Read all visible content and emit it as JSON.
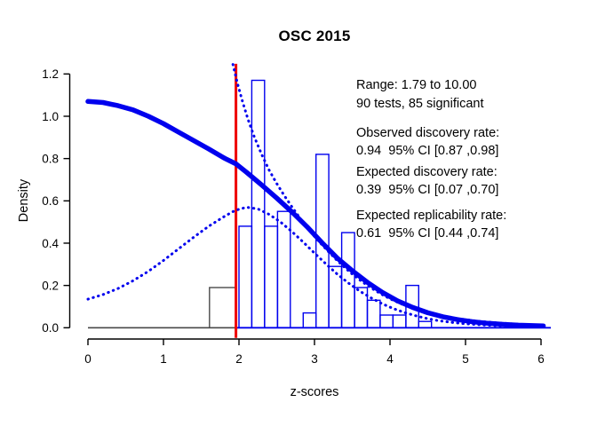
{
  "annotations": {
    "range_line": "Range: 1.79 to 10.00",
    "tests_line": "90 tests, 85 significant",
    "odr_label": "Observed discovery rate:",
    "odr_value": "0.94  95% CI [0.87 ,0.98]",
    "edr_label": "Expected discovery rate:",
    "edr_value": "0.39  95% CI [0.07 ,0.70]",
    "err_label": "Expected replicability rate:",
    "err_value": "0.61  95% CI [0.44 ,0.74]"
  },
  "stats": {
    "range": "1.79 to 10.00",
    "n_tests": 90,
    "n_significant": 85,
    "observed_discovery_rate": 0.94,
    "observed_discovery_rate_ci": [
      0.87,
      0.98
    ],
    "expected_discovery_rate": 0.39,
    "expected_discovery_rate_ci": [
      0.07,
      0.7
    ],
    "expected_replicability_rate": 0.61,
    "expected_replicability_rate_ci": [
      0.44,
      0.74
    ]
  },
  "chart_data": {
    "type": "bar",
    "subtype": "z-curve histogram with fitted density curves",
    "title": "OSC 2015",
    "xlabel": "z-scores",
    "ylabel": "Density",
    "xlim": [
      0,
      6
    ],
    "ylim": [
      0,
      1.2
    ],
    "grid": false,
    "legend": "none",
    "x_tick_values": [
      0,
      1,
      2,
      3,
      4,
      5,
      6
    ],
    "x_tick_labels": [
      "0",
      "1",
      "2",
      "3",
      "4",
      "5",
      "6"
    ],
    "y_tick_values": [
      0.0,
      0.2,
      0.4,
      0.6,
      0.8,
      1.0,
      1.2
    ],
    "y_tick_labels": [
      "0.0",
      "0.2",
      "0.4",
      "0.6",
      "0.8",
      "1.0",
      "1.2"
    ],
    "red_line_z": 1.96,
    "baseline_split_z": 1.965,
    "baseline_end_z": 6.13,
    "bars": [
      {
        "from": 1.61,
        "to": 1.965,
        "height": 0.19,
        "color": "gray"
      },
      {
        "from": 2.0,
        "to": 2.17,
        "height": 0.48
      },
      {
        "from": 2.17,
        "to": 2.34,
        "height": 1.17
      },
      {
        "from": 2.34,
        "to": 2.51,
        "height": 0.48
      },
      {
        "from": 2.51,
        "to": 2.68,
        "height": 0.55
      },
      {
        "from": 2.85,
        "to": 3.02,
        "height": 0.07
      },
      {
        "from": 3.02,
        "to": 3.19,
        "height": 0.82
      },
      {
        "from": 3.19,
        "to": 3.36,
        "height": 0.29
      },
      {
        "from": 3.36,
        "to": 3.53,
        "height": 0.45
      },
      {
        "from": 3.53,
        "to": 3.7,
        "height": 0.19
      },
      {
        "from": 3.7,
        "to": 3.87,
        "height": 0.13
      },
      {
        "from": 3.87,
        "to": 4.04,
        "height": 0.06
      },
      {
        "from": 4.04,
        "to": 4.21,
        "height": 0.06
      },
      {
        "from": 4.21,
        "to": 4.38,
        "height": 0.2
      },
      {
        "from": 4.38,
        "to": 4.55,
        "height": 0.03
      }
    ],
    "curves": {
      "solid": {
        "name": "fitted z-curve density",
        "points": [
          [
            0,
            1.07
          ],
          [
            0.2,
            1.065
          ],
          [
            0.4,
            1.05
          ],
          [
            0.6,
            1.03
          ],
          [
            0.8,
            1.0
          ],
          [
            1.0,
            0.965
          ],
          [
            1.2,
            0.925
          ],
          [
            1.4,
            0.885
          ],
          [
            1.6,
            0.845
          ],
          [
            1.8,
            0.803
          ],
          [
            1.96,
            0.775
          ],
          [
            2.1,
            0.735
          ],
          [
            2.3,
            0.675
          ],
          [
            2.5,
            0.613
          ],
          [
            2.7,
            0.548
          ],
          [
            2.9,
            0.478
          ],
          [
            3.1,
            0.402
          ],
          [
            3.3,
            0.33
          ],
          [
            3.5,
            0.27
          ],
          [
            3.7,
            0.215
          ],
          [
            3.9,
            0.167
          ],
          [
            4.1,
            0.127
          ],
          [
            4.3,
            0.096
          ],
          [
            4.5,
            0.071
          ],
          [
            4.7,
            0.052
          ],
          [
            4.9,
            0.038
          ],
          [
            5.1,
            0.028
          ],
          [
            5.3,
            0.021
          ],
          [
            5.5,
            0.016
          ],
          [
            5.7,
            0.012
          ],
          [
            6.03,
            0.009
          ]
        ]
      },
      "ci_upper": {
        "name": "upper 95% CI (dotted)",
        "points": [
          [
            1.92,
            1.245
          ],
          [
            1.98,
            1.155
          ],
          [
            2.05,
            1.065
          ],
          [
            2.12,
            0.985
          ],
          [
            2.2,
            0.905
          ],
          [
            2.3,
            0.82
          ],
          [
            2.4,
            0.745
          ],
          [
            2.5,
            0.682
          ],
          [
            2.6,
            0.625
          ],
          [
            2.7,
            0.572
          ],
          [
            2.8,
            0.522
          ],
          [
            2.9,
            0.475
          ],
          [
            3.0,
            0.432
          ],
          [
            3.1,
            0.392
          ],
          [
            3.2,
            0.354
          ],
          [
            3.3,
            0.318
          ],
          [
            3.4,
            0.285
          ],
          [
            3.5,
            0.254
          ],
          [
            3.6,
            0.226
          ],
          [
            3.7,
            0.2
          ],
          [
            3.8,
            0.177
          ],
          [
            3.9,
            0.156
          ],
          [
            4.0,
            0.137
          ],
          [
            4.2,
            0.105
          ],
          [
            4.4,
            0.081
          ],
          [
            4.6,
            0.062
          ],
          [
            4.8,
            0.048
          ],
          [
            5.0,
            0.038
          ],
          [
            5.2,
            0.03
          ],
          [
            5.4,
            0.024
          ],
          [
            5.6,
            0.019
          ],
          [
            5.8,
            0.015
          ],
          [
            6.0,
            0.012
          ]
        ]
      },
      "ci_lower": {
        "name": "lower 95% CI (dotted)",
        "points": [
          [
            0,
            0.135
          ],
          [
            0.2,
            0.157
          ],
          [
            0.4,
            0.186
          ],
          [
            0.6,
            0.223
          ],
          [
            0.8,
            0.267
          ],
          [
            1.0,
            0.318
          ],
          [
            1.2,
            0.373
          ],
          [
            1.4,
            0.428
          ],
          [
            1.6,
            0.48
          ],
          [
            1.8,
            0.525
          ],
          [
            1.95,
            0.555
          ],
          [
            2.1,
            0.57
          ],
          [
            2.25,
            0.562
          ],
          [
            2.4,
            0.536
          ],
          [
            2.55,
            0.5
          ],
          [
            2.7,
            0.455
          ],
          [
            2.85,
            0.405
          ],
          [
            3.0,
            0.353
          ],
          [
            3.15,
            0.302
          ],
          [
            3.3,
            0.254
          ],
          [
            3.45,
            0.211
          ],
          [
            3.6,
            0.173
          ],
          [
            3.75,
            0.141
          ],
          [
            3.9,
            0.113
          ],
          [
            4.05,
            0.09
          ],
          [
            4.2,
            0.071
          ],
          [
            4.35,
            0.056
          ],
          [
            4.5,
            0.043
          ],
          [
            4.65,
            0.033
          ],
          [
            4.8,
            0.026
          ],
          [
            5.0,
            0.019
          ],
          [
            5.2,
            0.014
          ],
          [
            5.4,
            0.01
          ],
          [
            5.6,
            0.008
          ],
          [
            5.8,
            0.006
          ],
          [
            6.0,
            0.005
          ]
        ]
      }
    },
    "colors": {
      "blue": "#0000EE",
      "red": "#EE0000",
      "gray": "#4A4A4A",
      "axis": "#000000",
      "text": "#000000",
      "background": "#FFFFFF"
    }
  }
}
